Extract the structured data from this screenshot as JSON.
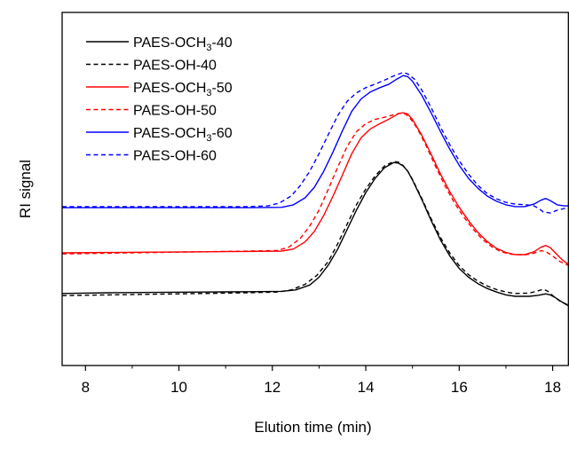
{
  "chart_data": {
    "type": "line",
    "title": "",
    "xlabel": "Elution time (min)",
    "ylabel": "RI signal",
    "xlim": [
      7.5,
      18.35
    ],
    "ylim": [
      0,
      1
    ],
    "x_ticks": [
      8,
      10,
      12,
      14,
      16,
      18
    ],
    "x_tick_labels": [
      "8",
      "10",
      "12",
      "14",
      "16",
      "18"
    ],
    "y_ticks_shown": false,
    "grid": false,
    "legend_position": "top-left",
    "series": [
      {
        "name": "PAES-OCH3-40",
        "label_parts": [
          "PAES-OCH",
          "3",
          "-40"
        ],
        "color": "#000000",
        "dash": "solid",
        "points": [
          [
            7.5,
            0.204
          ],
          [
            8.5,
            0.206
          ],
          [
            9.5,
            0.207
          ],
          [
            10.5,
            0.208
          ],
          [
            11.5,
            0.209
          ],
          [
            12.2,
            0.21
          ],
          [
            12.5,
            0.214
          ],
          [
            12.8,
            0.228
          ],
          [
            13.0,
            0.25
          ],
          [
            13.2,
            0.285
          ],
          [
            13.4,
            0.33
          ],
          [
            13.6,
            0.385
          ],
          [
            13.8,
            0.44
          ],
          [
            14.0,
            0.49
          ],
          [
            14.2,
            0.53
          ],
          [
            14.4,
            0.56
          ],
          [
            14.6,
            0.575
          ],
          [
            14.7,
            0.573
          ],
          [
            14.8,
            0.565
          ],
          [
            14.9,
            0.55
          ],
          [
            15.0,
            0.525
          ],
          [
            15.2,
            0.47
          ],
          [
            15.4,
            0.41
          ],
          [
            15.6,
            0.355
          ],
          [
            15.8,
            0.31
          ],
          [
            16.0,
            0.275
          ],
          [
            16.2,
            0.25
          ],
          [
            16.4,
            0.232
          ],
          [
            16.6,
            0.218
          ],
          [
            16.8,
            0.208
          ],
          [
            17.0,
            0.2
          ],
          [
            17.2,
            0.196
          ],
          [
            17.5,
            0.196
          ],
          [
            17.7,
            0.199
          ],
          [
            17.85,
            0.203
          ],
          [
            17.95,
            0.2
          ],
          [
            18.05,
            0.193
          ],
          [
            18.2,
            0.18
          ],
          [
            18.35,
            0.168
          ]
        ]
      },
      {
        "name": "PAES-OH-40",
        "label_parts": [
          "PAES-OH-40"
        ],
        "color": "#000000",
        "dash": "dashed",
        "points": [
          [
            7.5,
            0.198
          ],
          [
            8.5,
            0.2
          ],
          [
            9.5,
            0.202
          ],
          [
            10.5,
            0.204
          ],
          [
            11.5,
            0.206
          ],
          [
            12.1,
            0.208
          ],
          [
            12.4,
            0.214
          ],
          [
            12.7,
            0.23
          ],
          [
            12.95,
            0.255
          ],
          [
            13.2,
            0.295
          ],
          [
            13.4,
            0.345
          ],
          [
            13.6,
            0.4
          ],
          [
            13.8,
            0.455
          ],
          [
            14.0,
            0.5
          ],
          [
            14.2,
            0.537
          ],
          [
            14.4,
            0.565
          ],
          [
            14.6,
            0.578
          ],
          [
            14.7,
            0.576
          ],
          [
            14.8,
            0.566
          ],
          [
            14.9,
            0.55
          ],
          [
            15.0,
            0.527
          ],
          [
            15.2,
            0.473
          ],
          [
            15.4,
            0.415
          ],
          [
            15.6,
            0.362
          ],
          [
            15.8,
            0.318
          ],
          [
            16.0,
            0.283
          ],
          [
            16.2,
            0.257
          ],
          [
            16.4,
            0.239
          ],
          [
            16.6,
            0.225
          ],
          [
            16.8,
            0.215
          ],
          [
            17.0,
            0.208
          ],
          [
            17.2,
            0.204
          ],
          [
            17.5,
            0.205
          ],
          [
            17.65,
            0.21
          ],
          [
            17.8,
            0.216
          ],
          [
            17.9,
            0.21
          ],
          [
            18.0,
            0.198
          ],
          [
            18.15,
            0.183
          ],
          [
            18.35,
            0.17
          ]
        ]
      },
      {
        "name": "PAES-OCH3-50",
        "label_parts": [
          "PAES-OCH",
          "3",
          "-50"
        ],
        "color": "#ff0000",
        "dash": "solid",
        "points": [
          [
            7.5,
            0.319
          ],
          [
            8.5,
            0.32
          ],
          [
            9.5,
            0.321
          ],
          [
            10.5,
            0.322
          ],
          [
            11.5,
            0.323
          ],
          [
            12.2,
            0.324
          ],
          [
            12.45,
            0.33
          ],
          [
            12.7,
            0.35
          ],
          [
            12.9,
            0.38
          ],
          [
            13.1,
            0.425
          ],
          [
            13.3,
            0.48
          ],
          [
            13.5,
            0.54
          ],
          [
            13.7,
            0.6
          ],
          [
            13.9,
            0.645
          ],
          [
            14.1,
            0.67
          ],
          [
            14.3,
            0.685
          ],
          [
            14.5,
            0.698
          ],
          [
            14.7,
            0.713
          ],
          [
            14.8,
            0.716
          ],
          [
            14.9,
            0.712
          ],
          [
            15.0,
            0.697
          ],
          [
            15.2,
            0.652
          ],
          [
            15.4,
            0.598
          ],
          [
            15.6,
            0.542
          ],
          [
            15.8,
            0.492
          ],
          [
            16.0,
            0.448
          ],
          [
            16.2,
            0.41
          ],
          [
            16.4,
            0.377
          ],
          [
            16.6,
            0.351
          ],
          [
            16.8,
            0.332
          ],
          [
            17.0,
            0.32
          ],
          [
            17.2,
            0.314
          ],
          [
            17.4,
            0.314
          ],
          [
            17.6,
            0.322
          ],
          [
            17.75,
            0.335
          ],
          [
            17.85,
            0.34
          ],
          [
            17.95,
            0.334
          ],
          [
            18.05,
            0.32
          ],
          [
            18.2,
            0.3
          ],
          [
            18.35,
            0.285
          ]
        ]
      },
      {
        "name": "PAES-OH-50",
        "label_parts": [
          "PAES-OH-50"
        ],
        "color": "#ff0000",
        "dash": "dashed",
        "points": [
          [
            7.5,
            0.316
          ],
          [
            8.5,
            0.318
          ],
          [
            9.5,
            0.32
          ],
          [
            10.5,
            0.322
          ],
          [
            11.5,
            0.324
          ],
          [
            12.1,
            0.326
          ],
          [
            12.35,
            0.335
          ],
          [
            12.6,
            0.36
          ],
          [
            12.8,
            0.395
          ],
          [
            13.0,
            0.44
          ],
          [
            13.2,
            0.5
          ],
          [
            13.4,
            0.562
          ],
          [
            13.6,
            0.62
          ],
          [
            13.8,
            0.662
          ],
          [
            14.0,
            0.685
          ],
          [
            14.2,
            0.697
          ],
          [
            14.4,
            0.703
          ],
          [
            14.6,
            0.71
          ],
          [
            14.75,
            0.715
          ],
          [
            14.85,
            0.712
          ],
          [
            14.95,
            0.7
          ],
          [
            15.1,
            0.672
          ],
          [
            15.3,
            0.62
          ],
          [
            15.5,
            0.562
          ],
          [
            15.7,
            0.508
          ],
          [
            15.9,
            0.46
          ],
          [
            16.1,
            0.42
          ],
          [
            16.3,
            0.386
          ],
          [
            16.5,
            0.357
          ],
          [
            16.7,
            0.336
          ],
          [
            16.9,
            0.322
          ],
          [
            17.1,
            0.315
          ],
          [
            17.4,
            0.313
          ],
          [
            17.6,
            0.318
          ],
          [
            17.75,
            0.325
          ],
          [
            17.85,
            0.323
          ],
          [
            18.0,
            0.31
          ],
          [
            18.15,
            0.295
          ],
          [
            18.35,
            0.283
          ]
        ]
      },
      {
        "name": "PAES-OCH3-60",
        "label_parts": [
          "PAES-OCH",
          "3",
          "-60"
        ],
        "color": "#0000ff",
        "dash": "solid",
        "points": [
          [
            7.5,
            0.447
          ],
          [
            8.5,
            0.447
          ],
          [
            9.5,
            0.447
          ],
          [
            10.5,
            0.447
          ],
          [
            11.5,
            0.447
          ],
          [
            12.2,
            0.448
          ],
          [
            12.45,
            0.455
          ],
          [
            12.7,
            0.475
          ],
          [
            12.9,
            0.505
          ],
          [
            13.1,
            0.55
          ],
          [
            13.3,
            0.605
          ],
          [
            13.5,
            0.665
          ],
          [
            13.7,
            0.72
          ],
          [
            13.9,
            0.755
          ],
          [
            14.1,
            0.775
          ],
          [
            14.3,
            0.787
          ],
          [
            14.5,
            0.797
          ],
          [
            14.65,
            0.81
          ],
          [
            14.8,
            0.821
          ],
          [
            14.9,
            0.818
          ],
          [
            15.0,
            0.805
          ],
          [
            15.2,
            0.765
          ],
          [
            15.4,
            0.715
          ],
          [
            15.6,
            0.662
          ],
          [
            15.8,
            0.612
          ],
          [
            16.0,
            0.567
          ],
          [
            16.2,
            0.53
          ],
          [
            16.4,
            0.502
          ],
          [
            16.6,
            0.48
          ],
          [
            16.8,
            0.465
          ],
          [
            17.0,
            0.455
          ],
          [
            17.2,
            0.45
          ],
          [
            17.4,
            0.45
          ],
          [
            17.6,
            0.457
          ],
          [
            17.75,
            0.468
          ],
          [
            17.85,
            0.473
          ],
          [
            17.95,
            0.467
          ],
          [
            18.1,
            0.455
          ],
          [
            18.25,
            0.452
          ],
          [
            18.35,
            0.452
          ]
        ]
      },
      {
        "name": "PAES-OH-60",
        "label_parts": [
          "PAES-OH-60"
        ],
        "color": "#0000ff",
        "dash": "dashed",
        "points": [
          [
            7.5,
            0.45
          ],
          [
            8.5,
            0.45
          ],
          [
            9.5,
            0.45
          ],
          [
            10.5,
            0.45
          ],
          [
            11.5,
            0.45
          ],
          [
            11.9,
            0.452
          ],
          [
            12.15,
            0.46
          ],
          [
            12.4,
            0.48
          ],
          [
            12.6,
            0.51
          ],
          [
            12.8,
            0.55
          ],
          [
            13.0,
            0.6
          ],
          [
            13.2,
            0.655
          ],
          [
            13.4,
            0.708
          ],
          [
            13.6,
            0.748
          ],
          [
            13.8,
            0.772
          ],
          [
            14.0,
            0.787
          ],
          [
            14.2,
            0.797
          ],
          [
            14.4,
            0.808
          ],
          [
            14.6,
            0.82
          ],
          [
            14.8,
            0.83
          ],
          [
            14.9,
            0.826
          ],
          [
            15.05,
            0.81
          ],
          [
            15.2,
            0.78
          ],
          [
            15.4,
            0.73
          ],
          [
            15.6,
            0.675
          ],
          [
            15.8,
            0.625
          ],
          [
            16.0,
            0.58
          ],
          [
            16.2,
            0.542
          ],
          [
            16.4,
            0.51
          ],
          [
            16.6,
            0.487
          ],
          [
            16.8,
            0.472
          ],
          [
            17.0,
            0.462
          ],
          [
            17.2,
            0.457
          ],
          [
            17.45,
            0.455
          ],
          [
            17.6,
            0.452
          ],
          [
            17.7,
            0.445
          ],
          [
            17.8,
            0.435
          ],
          [
            17.95,
            0.432
          ],
          [
            18.1,
            0.44
          ],
          [
            18.35,
            0.448
          ]
        ]
      }
    ]
  }
}
